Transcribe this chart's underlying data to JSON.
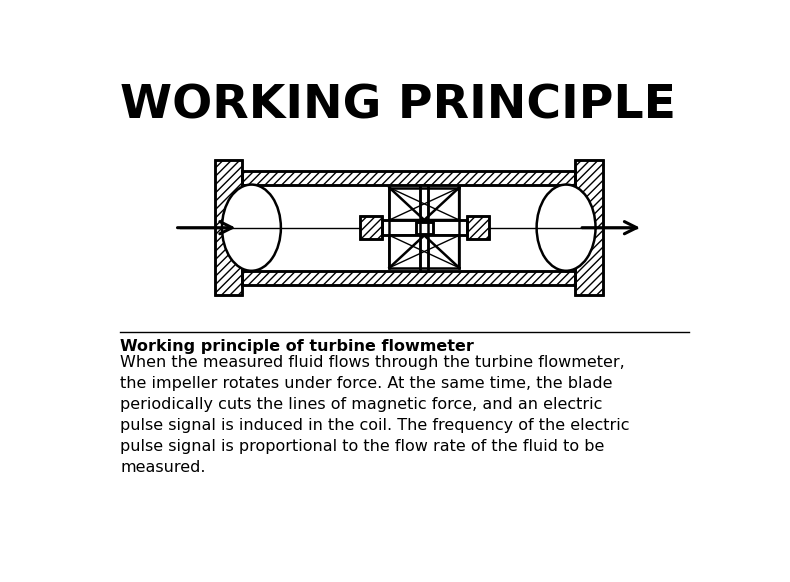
{
  "title": "WORKING PRINCIPLE",
  "title_fontsize": 34,
  "title_fontweight": "bold",
  "bold_text": "Working principle of turbine flowmeter",
  "body_text": "When the measured fluid flows through the turbine flowmeter,\nthe impeller rotates under force. At the same time, the blade\nperiodically cuts the lines of magnetic force, and an electric\npulse signal is induced in the coil. The frequency of the electric\npulse signal is proportional to the flow rate of the fluid to be\nmeasured.",
  "line_color": "#000000",
  "bg_color": "#ffffff",
  "lw_main": 1.8,
  "lw_thin": 1.0
}
